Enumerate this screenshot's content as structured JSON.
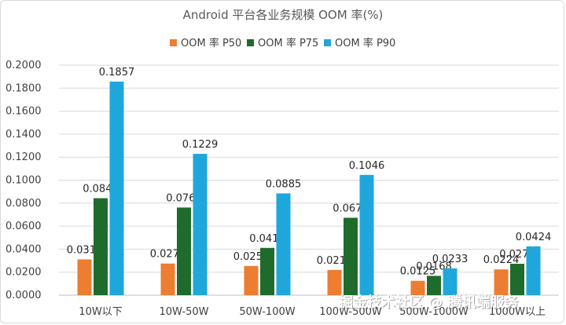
{
  "chart_data": {
    "type": "bar",
    "title": "Android 平台各业务规模 OOM 率(%)",
    "categories": [
      "10W以下",
      "10W-50W",
      "50W-100W",
      "100W-500W",
      "500W-1000W",
      "1000W以上"
    ],
    "series": [
      {
        "name": "OOM 率 P50",
        "color": "#ed7d31",
        "values": [
          0.0311,
          0.0275,
          0.0254,
          0.0219,
          0.0125,
          0.0224
        ]
      },
      {
        "name": "OOM 率 P75",
        "color": "#1f6b2b",
        "values": [
          0.0843,
          0.0762,
          0.0411,
          0.0673,
          0.0168,
          0.0273
        ]
      },
      {
        "name": "OOM 率 P90",
        "color": "#1fa7dc",
        "values": [
          0.1857,
          0.1229,
          0.0885,
          0.1046,
          0.0233,
          0.0424
        ]
      }
    ],
    "data_labels": [
      [
        "0.0311",
        "0.0275",
        "0.0254",
        "0.0219",
        "0.0125",
        "0.0224"
      ],
      [
        "0.0843",
        "0.0762",
        "0.0411",
        "0.0673",
        "0.0168",
        "0.0273"
      ],
      [
        "0.1857",
        "0.1229",
        "0.0885",
        "0.1046",
        "0.0233",
        "0.0424"
      ]
    ],
    "yticks": [
      "0.0000",
      "0.0200",
      "0.0400",
      "0.0600",
      "0.0800",
      "0.1000",
      "0.1200",
      "0.1400",
      "0.1600",
      "0.1800",
      "0.2000"
    ],
    "ylim": [
      0,
      0.2
    ],
    "grid": true,
    "legend": "top-center"
  },
  "watermark": "掘金技术社区 @ 腾讯端服务"
}
